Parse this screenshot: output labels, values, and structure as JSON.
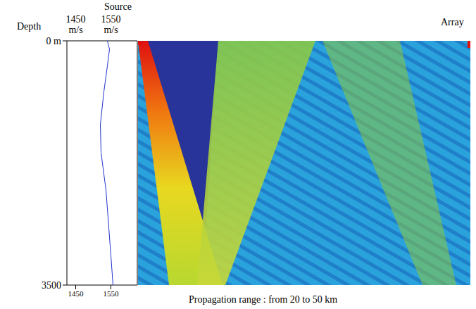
{
  "chart_data": {
    "type": "line",
    "annotations": [
      "Source",
      "Array",
      "Propagation range : from 20 to 50 km"
    ],
    "y_label": "Depth",
    "x": [
      1540,
      1546,
      1540,
      1530,
      1520,
      1522,
      1536,
      1550,
      1556
    ],
    "values": [
      0,
      120,
      360,
      730,
      1200,
      1600,
      2140,
      3080,
      3500
    ],
    "color": "#2233cc",
    "xlim": [
      1425,
      1625
    ],
    "xticks": [
      1450,
      1550
    ],
    "xticks_top": [
      {
        "value": 1450,
        "label": "1450 m/s"
      },
      {
        "value": 1550,
        "label": "1550 m/s"
      }
    ],
    "ylim": [
      0,
      3500
    ],
    "yticks": [
      {
        "value": 0,
        "label": "0 m"
      },
      3500
    ]
  }
}
